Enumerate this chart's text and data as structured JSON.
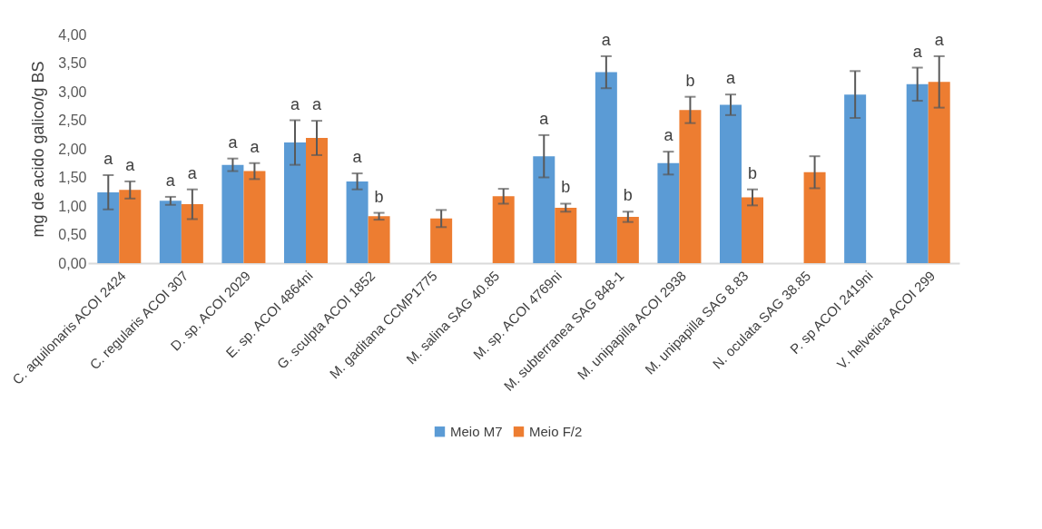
{
  "chart_data": {
    "type": "bar",
    "ylabel": "mg de acido galico/g BS",
    "categories": [
      "C. aquilonaris ACOI 2424",
      "C. regularis ACOI 307",
      "D. sp. ACOI 2029",
      "E. sp. ACOI 4864ni",
      "G. sculpta ACOI 1852",
      "M. gaditana CCMP1775",
      "M. salina SAG 40.85",
      "M. sp. ACOI 4769ni",
      "M. subterranea SAG 848-1",
      "M. unipapilla ACOI 2938",
      "M. unipapilla SAG 8.83",
      "N. oculata SAG 38.85",
      "P. sp ACOI 2419ni",
      "V. helvetica ACOI 299"
    ],
    "series": [
      {
        "name": "Meio M7",
        "color": "#5b9bd5",
        "values": [
          1.24,
          1.09,
          1.72,
          2.11,
          1.43,
          null,
          null,
          1.87,
          3.34,
          1.75,
          2.77,
          null,
          2.95,
          3.13
        ],
        "errors": [
          0.3,
          0.07,
          0.11,
          0.39,
          0.14,
          null,
          null,
          0.37,
          0.28,
          0.2,
          0.18,
          null,
          0.41,
          0.29
        ]
      },
      {
        "name": "Meio F/2",
        "color": "#ed7d31",
        "values": [
          1.28,
          1.03,
          1.61,
          2.19,
          0.82,
          0.78,
          1.17,
          0.97,
          0.81,
          2.68,
          1.15,
          1.59,
          null,
          3.17
        ],
        "errors": [
          0.15,
          0.26,
          0.14,
          0.3,
          0.06,
          0.15,
          0.13,
          0.07,
          0.09,
          0.23,
          0.14,
          0.28,
          null,
          0.45
        ]
      }
    ],
    "ylim": [
      0,
      4
    ],
    "yticks": [
      {
        "value": 0,
        "label": "0,00"
      },
      {
        "value": 0.5,
        "label": "0,50"
      },
      {
        "value": 1,
        "label": "1,00"
      },
      {
        "value": 1.5,
        "label": "1,50"
      },
      {
        "value": 2,
        "label": "2,00"
      },
      {
        "value": 2.5,
        "label": "2,50"
      },
      {
        "value": 3,
        "label": "3,00"
      },
      {
        "value": 3.5,
        "label": "3,50"
      },
      {
        "value": 4,
        "label": "4,00"
      }
    ],
    "grid": false,
    "legend": "bottom",
    "annotations": [
      "a",
      "a",
      "a",
      "a",
      "a",
      "a",
      "a",
      "a",
      "a",
      "b",
      "a",
      "b",
      "a",
      "b",
      "a",
      "b",
      "a",
      "b",
      "a",
      "a"
    ]
  }
}
